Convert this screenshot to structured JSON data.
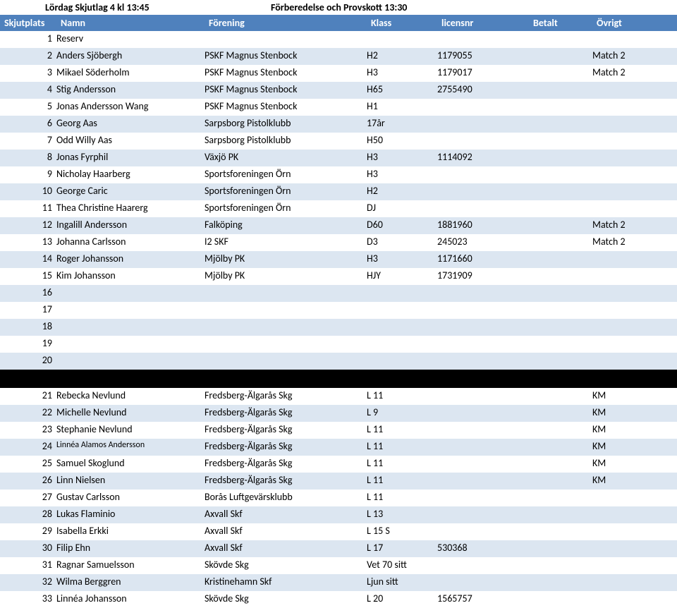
{
  "title": {
    "left": "Lördag Skjutlag 4  kl 13:45",
    "right": "Förberedelse och Provskott 13:30"
  },
  "header": {
    "plats": "Skjutplats",
    "namn": "Namn",
    "forening": "Förening",
    "klass": "Klass",
    "licensnr": "licensnr",
    "betalt": "Betalt",
    "ovrigt": "Övrigt"
  },
  "rows": [
    {
      "n": "1",
      "namn": "Reserv",
      "forening": "",
      "klass": "",
      "licensnr": "",
      "betalt": "",
      "ovrigt": ""
    },
    {
      "n": "2",
      "namn": "Anders Sjöbergh",
      "forening": "PSKF Magnus Stenbock",
      "klass": "H2",
      "licensnr": "1179055",
      "betalt": "",
      "ovrigt": "Match 2"
    },
    {
      "n": "3",
      "namn": "Mikael Söderholm",
      "forening": "PSKF Magnus Stenbock",
      "klass": "H3",
      "licensnr": "1179017",
      "betalt": "",
      "ovrigt": "Match 2"
    },
    {
      "n": "4",
      "namn": "Stig Andersson",
      "forening": "PSKF Magnus Stenbock",
      "klass": "H65",
      "licensnr": "2755490",
      "betalt": "",
      "ovrigt": ""
    },
    {
      "n": "5",
      "namn": "Jonas Andersson Wang",
      "forening": "PSKF Magnus Stenbock",
      "klass": "H1",
      "licensnr": "",
      "betalt": "",
      "ovrigt": ""
    },
    {
      "n": "6",
      "namn": "Georg Aas",
      "forening": "Sarpsborg Pistolklubb",
      "klass": "17år",
      "licensnr": "",
      "betalt": "",
      "ovrigt": ""
    },
    {
      "n": "7",
      "namn": "Odd Willy Aas",
      "forening": "Sarpsborg Pistolklubb",
      "klass": "H50",
      "licensnr": "",
      "betalt": "",
      "ovrigt": ""
    },
    {
      "n": "8",
      "namn": "Jonas Fyrphil",
      "forening": "Växjö PK",
      "klass": "H3",
      "licensnr": "1114092",
      "betalt": "",
      "ovrigt": ""
    },
    {
      "n": "9",
      "namn": "Nicholay Haarberg",
      "forening": "Sportsforeningen Örn",
      "klass": "H3",
      "licensnr": "",
      "betalt": "",
      "ovrigt": ""
    },
    {
      "n": "10",
      "namn": "George Caric",
      "forening": "Sportsforeningen Örn",
      "klass": "H2",
      "licensnr": "",
      "betalt": "",
      "ovrigt": ""
    },
    {
      "n": "11",
      "namn": "Thea Christine Haarerg",
      "forening": "Sportsforeningen Örn",
      "klass": "DJ",
      "licensnr": "",
      "betalt": "",
      "ovrigt": ""
    },
    {
      "n": "12",
      "namn": "Ingalill Andersson",
      "forening": "Falköping",
      "klass": "D60",
      "licensnr": "1881960",
      "betalt": "",
      "ovrigt": "Match 2"
    },
    {
      "n": "13",
      "namn": "Johanna Carlsson",
      "forening": "I2 SKF",
      "klass": "D3",
      "licensnr": "245023",
      "betalt": "",
      "ovrigt": "Match 2"
    },
    {
      "n": "14",
      "namn": "Roger Johansson",
      "forening": "Mjölby PK",
      "klass": "H3",
      "licensnr": "1171660",
      "betalt": "",
      "ovrigt": ""
    },
    {
      "n": "15",
      "namn": "Kim Johansson",
      "forening": "Mjölby PK",
      "klass": "HJY",
      "licensnr": "1731909",
      "betalt": "",
      "ovrigt": ""
    },
    {
      "n": "16",
      "namn": "",
      "forening": "",
      "klass": "",
      "licensnr": "",
      "betalt": "",
      "ovrigt": ""
    },
    {
      "n": "17",
      "namn": "",
      "forening": "",
      "klass": "",
      "licensnr": "",
      "betalt": "",
      "ovrigt": ""
    },
    {
      "n": "18",
      "namn": "",
      "forening": "",
      "klass": "",
      "licensnr": "",
      "betalt": "",
      "ovrigt": ""
    },
    {
      "n": "19",
      "namn": "",
      "forening": "",
      "klass": "",
      "licensnr": "",
      "betalt": "",
      "ovrigt": ""
    },
    {
      "n": "20",
      "namn": "",
      "forening": "",
      "klass": "",
      "licensnr": "",
      "betalt": "",
      "ovrigt": ""
    }
  ],
  "rows2": [
    {
      "n": "21",
      "namn": "Rebecka Nevlund",
      "forening": "Fredsberg-Älgarås Skg",
      "klass": "L 11",
      "licensnr": "",
      "betalt": "",
      "ovrigt": "KM"
    },
    {
      "n": "22",
      "namn": "Michelle Nevlund",
      "forening": "Fredsberg-Älgarås Skg",
      "klass": "L 9",
      "licensnr": "",
      "betalt": "",
      "ovrigt": "KM"
    },
    {
      "n": "23",
      "namn": "Stephanie Nevlund",
      "forening": "Fredsberg-Älgarås Skg",
      "klass": "L 11",
      "licensnr": "",
      "betalt": "",
      "ovrigt": "KM"
    },
    {
      "n": "24",
      "namn": "Linnéa Alamos Andersson",
      "forening": "Fredsberg-Älgarås Skg",
      "klass": "L 11",
      "licensnr": "",
      "betalt": "",
      "ovrigt": "KM",
      "small": true
    },
    {
      "n": "25",
      "namn": "Samuel Skoglund",
      "forening": "Fredsberg-Älgarås Skg",
      "klass": "L 11",
      "licensnr": "",
      "betalt": "",
      "ovrigt": "KM"
    },
    {
      "n": "26",
      "namn": "Linn Nielsen",
      "forening": "Fredsberg-Älgarås Skg",
      "klass": "L 11",
      "licensnr": "",
      "betalt": "",
      "ovrigt": "KM"
    },
    {
      "n": "27",
      "namn": "Gustav Carlsson",
      "forening": "Borås Luftgevärsklubb",
      "klass": "L 11",
      "licensnr": "",
      "betalt": "",
      "ovrigt": ""
    },
    {
      "n": "28",
      "namn": "Lukas Flaminio",
      "forening": "Axvall Skf",
      "klass": "L 13",
      "licensnr": "",
      "betalt": "",
      "ovrigt": ""
    },
    {
      "n": "29",
      "namn": "Isabella Erkki",
      "forening": "Axvall Skf",
      "klass": "L 15 S",
      "licensnr": "",
      "betalt": "",
      "ovrigt": ""
    },
    {
      "n": "30",
      "namn": "Filip Ehn",
      "forening": "Axvall Skf",
      "klass": "L 17",
      "licensnr": "530368",
      "betalt": "",
      "ovrigt": ""
    },
    {
      "n": "31",
      "namn": "Ragnar Samuelsson",
      "forening": "Skövde Skg",
      "klass": "Vet 70 sitt",
      "licensnr": "",
      "betalt": "",
      "ovrigt": ""
    },
    {
      "n": "32",
      "namn": "Wilma Berggren",
      "forening": "Kristinehamn Skf",
      "klass": "Ljun sitt",
      "licensnr": "",
      "betalt": "",
      "ovrigt": ""
    },
    {
      "n": "33",
      "namn": "Linnéa  Johansson",
      "forening": "Skövde Skg",
      "klass": "L 20",
      "licensnr": "1565757",
      "betalt": "",
      "ovrigt": ""
    }
  ],
  "colors": {
    "headerBg": "#4f81bd",
    "altRow": "#dce6f1"
  }
}
